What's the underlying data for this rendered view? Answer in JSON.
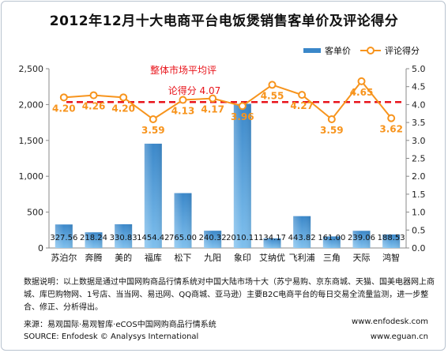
{
  "chart_data": {
    "type": "bar",
    "title": "2012年12月十大电商平台电饭煲销售客单价及评论得分",
    "categories": [
      "苏泊尔",
      "奔腾",
      "美的",
      "福库",
      "松下",
      "九阳",
      "象印",
      "艾纳优",
      "飞利浦",
      "三角",
      "天际",
      "鸿智"
    ],
    "series": [
      {
        "name": "客单价",
        "type": "bar",
        "axis": "left",
        "values": [
          327.56,
          218.24,
          330.83,
          1454.42,
          765.0,
          240.32,
          2010.11,
          134.17,
          443.82,
          161.0,
          239.06,
          188.53
        ],
        "labels": [
          "327.56",
          "218.24",
          "330.83",
          "1454.42",
          "765.00",
          "240.32",
          "2010.11",
          "134.17",
          "443.82",
          "161.00",
          "239.06",
          "188.53"
        ]
      },
      {
        "name": "评论得分",
        "type": "line",
        "axis": "right",
        "values": [
          4.2,
          4.26,
          4.2,
          3.59,
          4.13,
          4.17,
          3.96,
          4.55,
          4.27,
          3.59,
          4.65,
          3.62
        ],
        "labels": [
          "4.20",
          "4.26",
          "4.20",
          "3.59",
          "4.13",
          "4.17",
          "3.96",
          "4.55",
          "4.27",
          "3.59",
          "4.65",
          "3.62"
        ]
      }
    ],
    "left_axis": {
      "min": 0,
      "max": 2500,
      "ticks": [
        0,
        500,
        1000,
        1500,
        2000,
        2500
      ],
      "tick_labels": [
        "0",
        "500",
        "1,000",
        "1,500",
        "2,000",
        "2,500"
      ]
    },
    "right_axis": {
      "min": 0,
      "max": 5,
      "ticks": [
        0,
        0.5,
        1,
        1.5,
        2,
        2.5,
        3,
        3.5,
        4,
        4.5,
        5
      ],
      "tick_labels": [
        "0.0",
        "0.5",
        "1.0",
        "1.5",
        "2.0",
        "2.5",
        "3.0",
        "3.5",
        "4.0",
        "4.5",
        "5.0"
      ]
    },
    "reference_line": {
      "value": 4.07,
      "axis": "right",
      "label_line1": "整体市场平均评",
      "label_line2": "论得分 4.07"
    },
    "legend_placement": "top-right",
    "grid": false
  },
  "notes": "数据说明：以上数据是通过中国网购商品行情系统对中国大陆市场十大（苏宁易购、京东商城、天猫、国美电器网上商城、库巴购物网、1号店、当当网、易迅网、QQ商城、亚马逊）主要B2C电商平台的每日交易全流量监测，进一步整合、修正、分析得出。",
  "source_cn": "来源：易观国际·易观智库·eCOS中国网购商品行情系统",
  "source_en": "SOURCE: Enfodesk © Analysys International",
  "site1": "www.enfodesk.com",
  "site2": "www.eguan.cn",
  "colors": {
    "bar": "#3a87c9",
    "bar_light": "#7fc0ee",
    "line": "#f7941d",
    "reference": "#e8131a",
    "axis": "#888888"
  }
}
